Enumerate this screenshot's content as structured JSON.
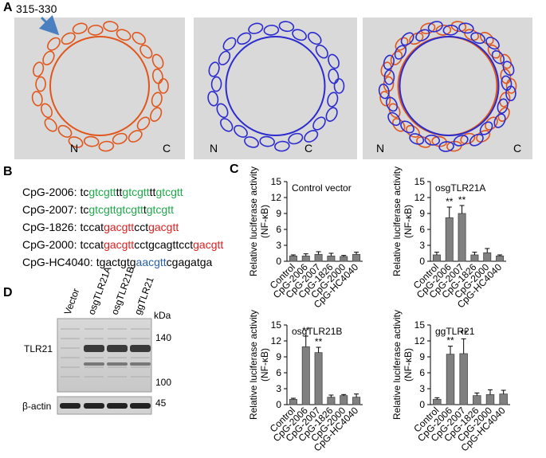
{
  "panel_labels": [
    "A",
    "B",
    "C",
    "D"
  ],
  "panel_a": {
    "annotation": "315-330",
    "structures": [
      {
        "n": "N",
        "c": "C",
        "color": "#e0561c"
      },
      {
        "n": "N",
        "c": "C",
        "color": "#2b2bd0"
      },
      {
        "n": "N",
        "c": "C",
        "color": "#e0561c"
      }
    ]
  },
  "panel_b": {
    "sequences": [
      {
        "name": "CpG-2006:",
        "segments": [
          {
            "text": "tc",
            "color": "#000000"
          },
          {
            "text": "gtcgtt",
            "color": "#1fa84a"
          },
          {
            "text": "tt",
            "color": "#000000"
          },
          {
            "text": "gtcgtt",
            "color": "#1fa84a"
          },
          {
            "text": "tt",
            "color": "#000000"
          },
          {
            "text": "gtcgtt",
            "color": "#1fa84a"
          }
        ]
      },
      {
        "name": "CpG-2007:",
        "segments": [
          {
            "text": "tc",
            "color": "#000000"
          },
          {
            "text": "gtcgttgtcgtt",
            "color": "#1fa84a"
          },
          {
            "text": "t",
            "color": "#000000"
          },
          {
            "text": "gtcgtt",
            "color": "#1fa84a"
          }
        ]
      },
      {
        "name": "CpG-1826:",
        "segments": [
          {
            "text": "tccat",
            "color": "#000000"
          },
          {
            "text": "gacgtt",
            "color": "#e02020"
          },
          {
            "text": "cct",
            "color": "#000000"
          },
          {
            "text": "gacgtt",
            "color": "#e02020"
          }
        ]
      },
      {
        "name": "CpG-2000:",
        "segments": [
          {
            "text": "tccat",
            "color": "#000000"
          },
          {
            "text": "gacgtt",
            "color": "#e02020"
          },
          {
            "text": "cctgcagttcct",
            "color": "#000000"
          },
          {
            "text": "gacgtt",
            "color": "#e02020"
          }
        ]
      },
      {
        "name": "CpG-HC4040:",
        "segments": [
          {
            "text": "tgactgtg",
            "color": "#000000"
          },
          {
            "text": "aacgtt",
            "color": "#2a5fa8"
          },
          {
            "text": "cgagatga",
            "color": "#000000"
          }
        ]
      }
    ]
  },
  "chart_data": [
    {
      "type": "bar",
      "title": "Control vector",
      "y_label": [
        "Relative luciferase activity",
        "(NF-κB)"
      ],
      "categories": [
        "Control",
        "CpG-2006",
        "CpG-2007",
        "CpG-1826",
        "CpG-2000",
        "CpG-HC4040"
      ],
      "values": [
        1.0,
        1.0,
        1.3,
        1.0,
        0.9,
        1.3
      ],
      "errors": [
        0.2,
        0.4,
        0.5,
        0.5,
        0.2,
        0.4
      ],
      "significance": [
        null,
        null,
        null,
        null,
        null,
        null
      ],
      "color": "#808080",
      "ylim": [
        0,
        15
      ],
      "yticks": [
        0,
        3,
        6,
        9,
        12,
        15
      ]
    },
    {
      "type": "bar",
      "title": "osgTLR21A",
      "y_label": [
        "Relative luciferase activity",
        "(NF-κB)"
      ],
      "categories": [
        "Control",
        "CpG-2006",
        "CpG-2007",
        "CpG-1826",
        "CpG-2000",
        "CpG-HC4040"
      ],
      "values": [
        1.2,
        8.2,
        9.0,
        1.2,
        1.6,
        1.0
      ],
      "errors": [
        0.5,
        2.0,
        1.5,
        0.5,
        0.8,
        0.2
      ],
      "significance": [
        null,
        "**",
        "**",
        null,
        null,
        null
      ],
      "color": "#808080",
      "ylim": [
        0,
        15
      ],
      "yticks": [
        0,
        3,
        6,
        9,
        12,
        15
      ]
    },
    {
      "type": "bar",
      "title": "osgTLR21B",
      "y_label": [
        "Relative luciferase activity",
        "(NF-κB)"
      ],
      "categories": [
        "Control",
        "CpG-2006",
        "CpG-2007",
        "CpG-1826",
        "CpG-2000",
        "CpG-HC4040"
      ],
      "values": [
        1.0,
        10.9,
        9.8,
        1.4,
        1.7,
        1.4
      ],
      "errors": [
        0.2,
        2.0,
        1.0,
        0.4,
        0.2,
        0.6
      ],
      "significance": [
        null,
        "**",
        "**",
        null,
        null,
        null
      ],
      "color": "#808080",
      "ylim": [
        0,
        15
      ],
      "yticks": [
        0,
        3,
        6,
        9,
        12,
        15
      ]
    },
    {
      "type": "bar",
      "title": "ggTLR21",
      "y_label": [
        "Relative luciferase activity",
        "(NF-κB)"
      ],
      "categories": [
        "Control",
        "CpG-2006",
        "CpG-2007",
        "CpG-1826",
        "CpG-2000",
        "CpG-HC4040"
      ],
      "values": [
        1.0,
        9.5,
        9.6,
        1.7,
        1.9,
        2.0
      ],
      "errors": [
        0.3,
        1.5,
        2.8,
        0.5,
        0.9,
        0.7
      ],
      "significance": [
        null,
        "**",
        "**",
        null,
        null,
        null
      ],
      "color": "#808080",
      "ylim": [
        0,
        15
      ],
      "yticks": [
        0,
        3,
        6,
        9,
        12,
        15
      ]
    }
  ],
  "panel_d": {
    "lanes": [
      "Vector",
      "osgTLR21A",
      "osgTLR21B",
      "ggTLR21"
    ],
    "unit": "kDa",
    "markers": [
      140,
      100,
      45
    ],
    "rows": [
      "TLR21",
      "β-actin"
    ]
  }
}
